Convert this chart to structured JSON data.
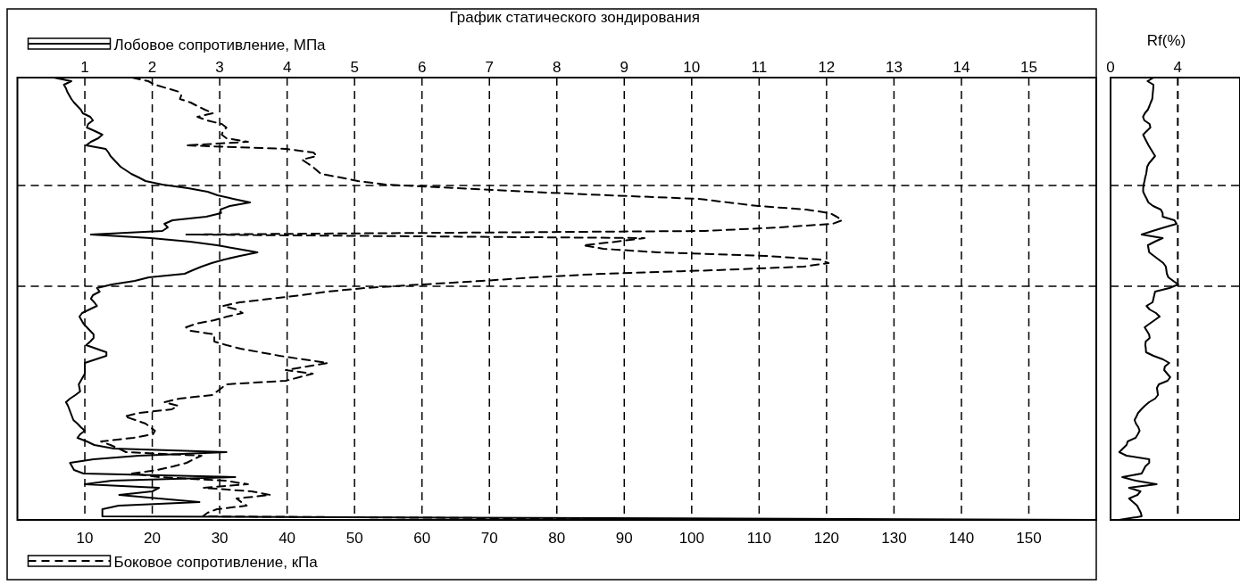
{
  "chart_data": [
    {
      "type": "line",
      "orientation": "horizontal",
      "title": "График статического зондирования",
      "categories": [
        null,
        null,
        null,
        null,
        null,
        null,
        null,
        null,
        null,
        null,
        null,
        null,
        null,
        null,
        null,
        null,
        null,
        null,
        null,
        null,
        null,
        null,
        null,
        null,
        null,
        null,
        null,
        null,
        null,
        null,
        null,
        null,
        null,
        null,
        null,
        null,
        null,
        null,
        null,
        null,
        null,
        null,
        null,
        null,
        null,
        null,
        null,
        null,
        null,
        null,
        null,
        null,
        null,
        null,
        null,
        null,
        null,
        null,
        null,
        null,
        null,
        null,
        null,
        null,
        null,
        null,
        null,
        null,
        null,
        null,
        null,
        null,
        null,
        null,
        null,
        null,
        null,
        null,
        null,
        null,
        null,
        null,
        null,
        null,
        null,
        null,
        null,
        null,
        null,
        null,
        null,
        null,
        null,
        null,
        null,
        null,
        null,
        null,
        null,
        null,
        null,
        null,
        null,
        null,
        null,
        null,
        null,
        null,
        null,
        null,
        null,
        null,
        null,
        null,
        null,
        null,
        null,
        null,
        null,
        null,
        null,
        null,
        null,
        null,
        null
      ],
      "xlim": [
        0,
        160
      ],
      "xticks": [
        10,
        20,
        30,
        40,
        50,
        60,
        70,
        80,
        90,
        100,
        110,
        120,
        130,
        140,
        150
      ],
      "x2lim": [
        0,
        16
      ],
      "x2ticks": [
        1,
        2,
        3,
        4,
        5,
        6,
        7,
        8,
        9,
        10,
        11,
        12,
        13,
        14,
        15
      ],
      "xlabel": "Боковое сопротивление, кПа",
      "x2label": "Лобовое сопротивление, МПа",
      "tick_labels": "x",
      "grid": "x",
      "series": [
        {
          "color": "#000000",
          "axis": "x2",
          "line_style": "solid",
          "values": [
            0.54,
            0.8,
            0.69,
            0.72,
            0.74,
            0.77,
            0.8,
            0.84,
            0.89,
            0.94,
            0.97,
            1.08,
            1.12,
            1.05,
            1.03,
            1.15,
            1.26,
            1.2,
            1.09,
            1.02,
            1.31,
            1.35,
            1.38,
            1.43,
            1.48,
            1.53,
            1.61,
            1.69,
            1.8,
            1.9,
            2.15,
            2.53,
            2.82,
            2.97,
            3.2,
            3.45,
            3.15,
            3.01,
            3.02,
            2.8,
            2.3,
            2.18,
            2.23,
            2.15,
            1.09,
            1.98,
            2.56,
            2.96,
            3.26,
            3.56,
            3.3,
            3.07,
            2.88,
            2.73,
            2.6,
            2.48,
            1.95,
            1.74,
            1.4,
            1.18,
            1.22,
            1.12,
            1.09,
            1.14,
            1.18,
            1.07,
            0.96,
            0.92,
            0.95,
            0.98,
            1.03,
            1.08,
            1.13,
            1.13,
            1.08,
            1.02,
            1.17,
            1.32,
            1.32,
            1.16,
            1.0,
            1.0,
            1.0,
            1.0,
            0.97,
            0.94,
            0.91,
            0.92,
            0.93,
            0.86,
            0.78,
            0.72,
            0.75,
            0.77,
            0.79,
            0.81,
            0.83,
            0.89,
            0.94,
            1.0,
            0.93,
            0.89,
            1.03,
            1.14,
            1.43,
            3.1,
            1.8,
            1.13,
            0.78,
            0.81,
            0.84,
            0.98,
            3.23,
            1.4,
            1.0,
            2.1,
            2.0,
            1.51,
            2.1,
            2.7,
            1.5,
            1.26,
            1.26,
            1.26,
            16
          ]
        },
        {
          "color": "#000000",
          "line_style": "dashed",
          "values": [
            17,
            19.4,
            20.4,
            22.2,
            24.0,
            24.3,
            24.1,
            25.7,
            26.7,
            27.8,
            29,
            26.7,
            28.1,
            30.3,
            31,
            30.5,
            30.3,
            31,
            34.2,
            25,
            39.8,
            43.9,
            44.4,
            42.2,
            43,
            43.8,
            44.4,
            45,
            47.9,
            50.5,
            54.7,
            65.3,
            75.8,
            87.7,
            101,
            105.4,
            109.9,
            117,
            120.5,
            121.5,
            122.3,
            120.9,
            112.9,
            102,
            25,
            93,
            88.8,
            83.9,
            86.9,
            95,
            111,
            119,
            120.3,
            116.6,
            103.4,
            86.7,
            76.7,
            68.9,
            60,
            51.5,
            46,
            42,
            37.5,
            33,
            30.5,
            32.5,
            33.4,
            31.1,
            29.2,
            26.5,
            25,
            25.7,
            29.2,
            29.2,
            29.2,
            31,
            33.1,
            36,
            38.9,
            42.4,
            46,
            42.9,
            39.8,
            43.8,
            41.8,
            39.8,
            30.9,
            30.3,
            29.6,
            28.9,
            24,
            21.8,
            23.8,
            22.9,
            18,
            15.9,
            17.5,
            19,
            19.7,
            20.4,
            20.1,
            17.2,
            12.4,
            13.8,
            15,
            16.1,
            27.3,
            26.1,
            25.1,
            23.1,
            20.8,
            17,
            21,
            30.8,
            34.2,
            27.6,
            34.7,
            37.5,
            32.5,
            33.2,
            34,
            29.6,
            28.2,
            27.5,
            113
          ]
        }
      ]
    },
    {
      "type": "line",
      "orientation": "horizontal",
      "x2label": "Rf(%)",
      "categories": [
        null,
        null,
        null,
        null,
        null,
        null,
        null,
        null,
        null,
        null,
        null,
        null,
        null,
        null,
        null,
        null,
        null,
        null,
        null,
        null,
        null,
        null,
        null,
        null,
        null,
        null,
        null,
        null,
        null,
        null,
        null,
        null,
        null,
        null,
        null,
        null,
        null,
        null,
        null,
        null,
        null,
        null,
        null,
        null,
        null,
        null,
        null,
        null,
        null,
        null,
        null,
        null,
        null,
        null,
        null,
        null,
        null,
        null,
        null,
        null,
        null,
        null,
        null,
        null,
        null,
        null,
        null,
        null,
        null,
        null,
        null,
        null,
        null,
        null,
        null,
        null,
        null,
        null,
        null,
        null,
        null,
        null,
        null,
        null,
        null,
        null,
        null,
        null,
        null,
        null,
        null,
        null,
        null,
        null,
        null,
        null,
        null,
        null,
        null,
        null,
        null,
        null,
        null,
        null,
        null,
        null,
        null,
        null,
        null,
        null,
        null,
        null,
        null,
        null,
        null,
        null,
        null,
        null,
        null,
        null,
        null,
        null,
        null,
        null,
        null
      ],
      "x2lim": [
        0,
        7.7
      ],
      "x2ticks": [
        0,
        4
      ],
      "tick_labels": "x",
      "ref_lines": [
        {
          "axis": "x2",
          "value": 4,
          "line_style": "dashed"
        }
      ],
      "series": [
        {
          "color": "#000000",
          "axis": "x2",
          "line_style": "solid",
          "values": [
            2.56,
            2.2,
            2.55,
            2.54,
            2.52,
            2.5,
            2.48,
            2.39,
            2.31,
            2.22,
            2.04,
            1.93,
            2.01,
            2.32,
            2.37,
            2.15,
            1.94,
            2.04,
            2.15,
            2.26,
            2.39,
            2.52,
            2.65,
            2.47,
            2.29,
            2.18,
            2.15,
            2.12,
            2.06,
            2.02,
            1.97,
            1.94,
            1.94,
            2.04,
            2.15,
            2.25,
            2.53,
            2.99,
            3.1,
            3.1,
            3.8,
            3.93,
            3.2,
            2.5,
            1.85,
            3.1,
            2.63,
            2.22,
            2.26,
            2.3,
            2.58,
            2.86,
            3.14,
            3.29,
            3.32,
            3.35,
            3.44,
            3.73,
            4.02,
            3.5,
            2.65,
            2.6,
            2.55,
            2.5,
            2.14,
            2.32,
            2.7,
            2.92,
            2.62,
            2.32,
            2.03,
            2.16,
            2.29,
            2.33,
            2.09,
            2.07,
            2.1,
            2.11,
            2.55,
            3.12,
            3.49,
            3.23,
            3.19,
            3.37,
            3.55,
            3.39,
            2.87,
            2.76,
            2.79,
            2.82,
            2.65,
            2.29,
            2.04,
            1.83,
            1.64,
            1.54,
            1.43,
            1.51,
            1.65,
            1.73,
            1.62,
            1.49,
            1.02,
            0.95,
            0.73,
            0.52,
            0.95,
            2.3,
            2.3,
            2.07,
            1.96,
            1.85,
            0.7,
            1.5,
            2.74,
            1.1,
            1.78,
            1.6,
            1.1,
            1.34,
            1.58,
            1.69,
            1.8,
            1.85,
            0.5
          ]
        }
      ]
    }
  ]
}
